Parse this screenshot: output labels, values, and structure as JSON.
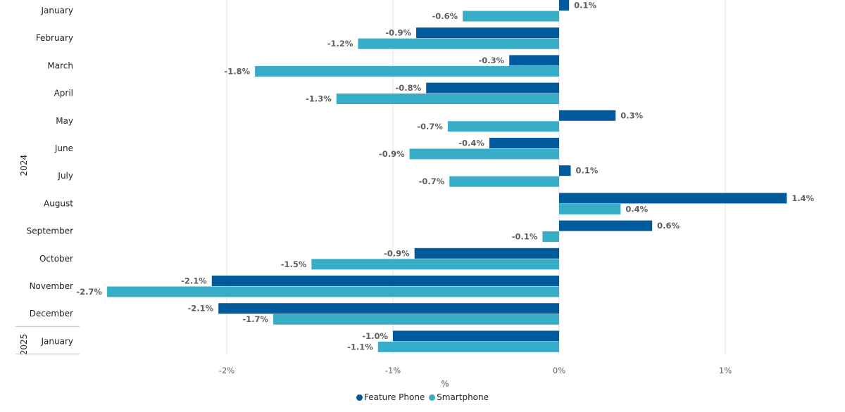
{
  "chart_data": {
    "type": "bar",
    "orientation": "horizontal",
    "title": "",
    "xlabel": "%",
    "ylabel": "",
    "xlim": [
      -2.75,
      1.55
    ],
    "x_ticks": [
      -2,
      -1,
      0,
      1
    ],
    "x_tick_labels": [
      "-2%",
      "-1%",
      "0%",
      "1%"
    ],
    "grid": true,
    "legend_position": "bottom-center",
    "year_groups": [
      {
        "label": "2024",
        "start": 0,
        "end": 11
      },
      {
        "label": "2025",
        "start": 12,
        "end": 12
      }
    ],
    "categories": [
      "January",
      "February",
      "March",
      "April",
      "May",
      "June",
      "July",
      "August",
      "September",
      "October",
      "November",
      "December",
      "January"
    ],
    "series": [
      {
        "name": "Feature Phone",
        "color": "#005a9c",
        "values": [
          0.06,
          -0.86,
          -0.3,
          -0.8,
          0.34,
          -0.42,
          0.07,
          1.37,
          0.56,
          -0.87,
          -2.09,
          -2.05,
          -1.0
        ],
        "labels": [
          "0.1%",
          "-0.9%",
          "-0.3%",
          "-0.8%",
          "0.3%",
          "-0.4%",
          "0.1%",
          "1.4%",
          "0.6%",
          "-0.9%",
          "-2.1%",
          "-2.1%",
          "-1.0%"
        ]
      },
      {
        "name": "Smartphone",
        "color": "#38adc7",
        "values": [
          -0.58,
          -1.21,
          -1.83,
          -1.34,
          -0.67,
          -0.9,
          -0.66,
          0.37,
          -0.1,
          -1.49,
          -2.72,
          -1.72,
          -1.09
        ],
        "labels": [
          "-0.6%",
          "-1.2%",
          "-1.8%",
          "-1.3%",
          "-0.7%",
          "-0.9%",
          "-0.7%",
          "0.4%",
          "-0.1%",
          "-1.5%",
          "-2.7%",
          "-1.7%",
          "-1.1%"
        ]
      }
    ]
  },
  "legend": {
    "items": [
      {
        "label": "Feature Phone",
        "color": "#005a9c"
      },
      {
        "label": "Smartphone",
        "color": "#38adc7"
      }
    ]
  }
}
